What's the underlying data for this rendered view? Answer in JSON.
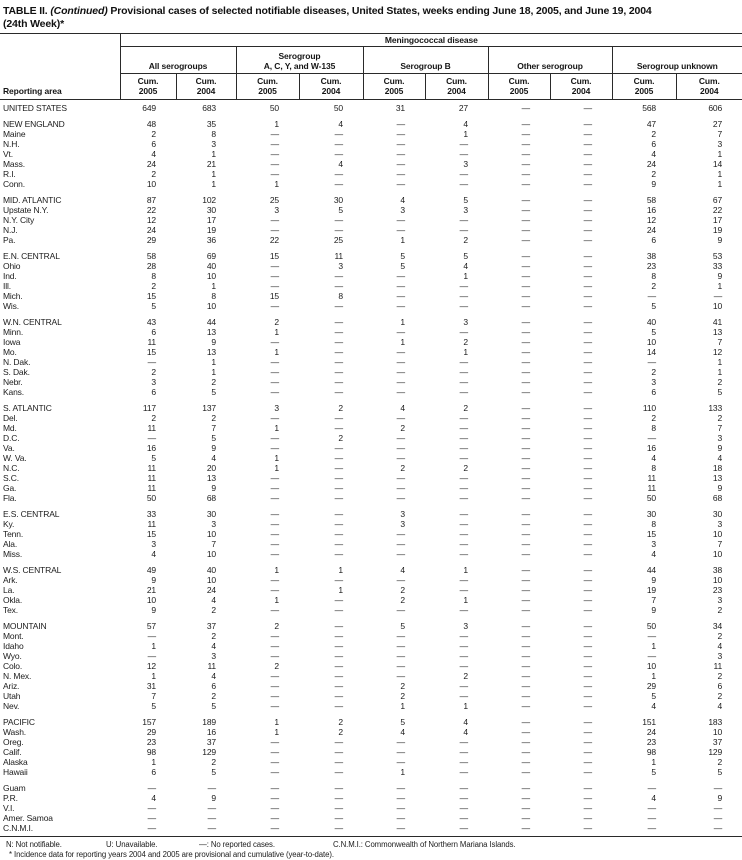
{
  "title": {
    "part1": "TABLE II.",
    "part2": "(Continued)",
    "part3": "Provisional cases of selected notifiable diseases, United States, weeks ending June 18, 2005, and June 19, 2004",
    "line2": "(24th Week)*"
  },
  "header": {
    "reporting_area": "Reporting area",
    "disease": "Meningococcal disease",
    "groups": [
      {
        "lines": [
          "All serogroups"
        ]
      },
      {
        "lines": [
          "Serogroup",
          "A, C, Y, and W-135"
        ]
      },
      {
        "lines": [
          "Serogroup B"
        ]
      },
      {
        "lines": [
          "Other serogroup"
        ]
      },
      {
        "lines": [
          "Serogroup unknown"
        ]
      }
    ],
    "cum_label": "Cum.",
    "years": [
      "2005",
      "2004"
    ]
  },
  "rows": [
    {
      "label": "UNITED STATES",
      "gap": false,
      "values": [
        "649",
        "683",
        "50",
        "50",
        "31",
        "27",
        "—",
        "—",
        "568",
        "606"
      ]
    },
    {
      "label": "NEW ENGLAND",
      "gap": true,
      "values": [
        "48",
        "35",
        "1",
        "4",
        "—",
        "4",
        "—",
        "—",
        "47",
        "27"
      ]
    },
    {
      "label": "Maine",
      "gap": false,
      "values": [
        "2",
        "8",
        "—",
        "—",
        "—",
        "1",
        "—",
        "—",
        "2",
        "7"
      ]
    },
    {
      "label": "N.H.",
      "gap": false,
      "values": [
        "6",
        "3",
        "—",
        "—",
        "—",
        "—",
        "—",
        "—",
        "6",
        "3"
      ]
    },
    {
      "label": "Vt.",
      "gap": false,
      "values": [
        "4",
        "1",
        "—",
        "—",
        "—",
        "—",
        "—",
        "—",
        "4",
        "1"
      ]
    },
    {
      "label": "Mass.",
      "gap": false,
      "values": [
        "24",
        "21",
        "—",
        "4",
        "—",
        "3",
        "—",
        "—",
        "24",
        "14"
      ]
    },
    {
      "label": "R.I.",
      "gap": false,
      "values": [
        "2",
        "1",
        "—",
        "—",
        "—",
        "—",
        "—",
        "—",
        "2",
        "1"
      ]
    },
    {
      "label": "Conn.",
      "gap": false,
      "values": [
        "10",
        "1",
        "1",
        "—",
        "—",
        "—",
        "—",
        "—",
        "9",
        "1"
      ]
    },
    {
      "label": "MID. ATLANTIC",
      "gap": true,
      "values": [
        "87",
        "102",
        "25",
        "30",
        "4",
        "5",
        "—",
        "—",
        "58",
        "67"
      ]
    },
    {
      "label": "Upstate N.Y.",
      "gap": false,
      "values": [
        "22",
        "30",
        "3",
        "5",
        "3",
        "3",
        "—",
        "—",
        "16",
        "22"
      ]
    },
    {
      "label": "N.Y. City",
      "gap": false,
      "values": [
        "12",
        "17",
        "—",
        "—",
        "—",
        "—",
        "—",
        "—",
        "12",
        "17"
      ]
    },
    {
      "label": "N.J.",
      "gap": false,
      "values": [
        "24",
        "19",
        "—",
        "—",
        "—",
        "—",
        "—",
        "—",
        "24",
        "19"
      ]
    },
    {
      "label": "Pa.",
      "gap": false,
      "values": [
        "29",
        "36",
        "22",
        "25",
        "1",
        "2",
        "—",
        "—",
        "6",
        "9"
      ]
    },
    {
      "label": "E.N. CENTRAL",
      "gap": true,
      "values": [
        "58",
        "69",
        "15",
        "11",
        "5",
        "5",
        "—",
        "—",
        "38",
        "53"
      ]
    },
    {
      "label": "Ohio",
      "gap": false,
      "values": [
        "28",
        "40",
        "—",
        "3",
        "5",
        "4",
        "—",
        "—",
        "23",
        "33"
      ]
    },
    {
      "label": "Ind.",
      "gap": false,
      "values": [
        "8",
        "10",
        "—",
        "—",
        "—",
        "1",
        "—",
        "—",
        "8",
        "9"
      ]
    },
    {
      "label": "Ill.",
      "gap": false,
      "values": [
        "2",
        "1",
        "—",
        "—",
        "—",
        "—",
        "—",
        "—",
        "2",
        "1"
      ]
    },
    {
      "label": "Mich.",
      "gap": false,
      "values": [
        "15",
        "8",
        "15",
        "8",
        "—",
        "—",
        "—",
        "—",
        "—",
        "—"
      ]
    },
    {
      "label": "Wis.",
      "gap": false,
      "values": [
        "5",
        "10",
        "—",
        "—",
        "—",
        "—",
        "—",
        "—",
        "5",
        "10"
      ]
    },
    {
      "label": "W.N. CENTRAL",
      "gap": true,
      "values": [
        "43",
        "44",
        "2",
        "—",
        "1",
        "3",
        "—",
        "—",
        "40",
        "41"
      ]
    },
    {
      "label": "Minn.",
      "gap": false,
      "values": [
        "6",
        "13",
        "1",
        "—",
        "—",
        "—",
        "—",
        "—",
        "5",
        "13"
      ]
    },
    {
      "label": "Iowa",
      "gap": false,
      "values": [
        "11",
        "9",
        "—",
        "—",
        "1",
        "2",
        "—",
        "—",
        "10",
        "7"
      ]
    },
    {
      "label": "Mo.",
      "gap": false,
      "values": [
        "15",
        "13",
        "1",
        "—",
        "—",
        "1",
        "—",
        "—",
        "14",
        "12"
      ]
    },
    {
      "label": "N. Dak.",
      "gap": false,
      "values": [
        "—",
        "1",
        "—",
        "—",
        "—",
        "—",
        "—",
        "—",
        "—",
        "1"
      ]
    },
    {
      "label": "S. Dak.",
      "gap": false,
      "values": [
        "2",
        "1",
        "—",
        "—",
        "—",
        "—",
        "—",
        "—",
        "2",
        "1"
      ]
    },
    {
      "label": "Nebr.",
      "gap": false,
      "values": [
        "3",
        "2",
        "—",
        "—",
        "—",
        "—",
        "—",
        "—",
        "3",
        "2"
      ]
    },
    {
      "label": "Kans.",
      "gap": false,
      "values": [
        "6",
        "5",
        "—",
        "—",
        "—",
        "—",
        "—",
        "—",
        "6",
        "5"
      ]
    },
    {
      "label": "S. ATLANTIC",
      "gap": true,
      "values": [
        "117",
        "137",
        "3",
        "2",
        "4",
        "2",
        "—",
        "—",
        "110",
        "133"
      ]
    },
    {
      "label": "Del.",
      "gap": false,
      "values": [
        "2",
        "2",
        "—",
        "—",
        "—",
        "—",
        "—",
        "—",
        "2",
        "2"
      ]
    },
    {
      "label": "Md.",
      "gap": false,
      "values": [
        "11",
        "7",
        "1",
        "—",
        "2",
        "—",
        "—",
        "—",
        "8",
        "7"
      ]
    },
    {
      "label": "D.C.",
      "gap": false,
      "values": [
        "—",
        "5",
        "—",
        "2",
        "—",
        "—",
        "—",
        "—",
        "—",
        "3"
      ]
    },
    {
      "label": "Va.",
      "gap": false,
      "values": [
        "16",
        "9",
        "—",
        "—",
        "—",
        "—",
        "—",
        "—",
        "16",
        "9"
      ]
    },
    {
      "label": "W. Va.",
      "gap": false,
      "values": [
        "5",
        "4",
        "1",
        "—",
        "—",
        "—",
        "—",
        "—",
        "4",
        "4"
      ]
    },
    {
      "label": "N.C.",
      "gap": false,
      "values": [
        "11",
        "20",
        "1",
        "—",
        "2",
        "2",
        "—",
        "—",
        "8",
        "18"
      ]
    },
    {
      "label": "S.C.",
      "gap": false,
      "values": [
        "11",
        "13",
        "—",
        "—",
        "—",
        "—",
        "—",
        "—",
        "11",
        "13"
      ]
    },
    {
      "label": "Ga.",
      "gap": false,
      "values": [
        "11",
        "9",
        "—",
        "—",
        "—",
        "—",
        "—",
        "—",
        "11",
        "9"
      ]
    },
    {
      "label": "Fla.",
      "gap": false,
      "values": [
        "50",
        "68",
        "—",
        "—",
        "—",
        "—",
        "—",
        "—",
        "50",
        "68"
      ]
    },
    {
      "label": "E.S. CENTRAL",
      "gap": true,
      "values": [
        "33",
        "30",
        "—",
        "—",
        "3",
        "—",
        "—",
        "—",
        "30",
        "30"
      ]
    },
    {
      "label": "Ky.",
      "gap": false,
      "values": [
        "11",
        "3",
        "—",
        "—",
        "3",
        "—",
        "—",
        "—",
        "8",
        "3"
      ]
    },
    {
      "label": "Tenn.",
      "gap": false,
      "values": [
        "15",
        "10",
        "—",
        "—",
        "—",
        "—",
        "—",
        "—",
        "15",
        "10"
      ]
    },
    {
      "label": "Ala.",
      "gap": false,
      "values": [
        "3",
        "7",
        "—",
        "—",
        "—",
        "—",
        "—",
        "—",
        "3",
        "7"
      ]
    },
    {
      "label": "Miss.",
      "gap": false,
      "values": [
        "4",
        "10",
        "—",
        "—",
        "—",
        "—",
        "—",
        "—",
        "4",
        "10"
      ]
    },
    {
      "label": "W.S. CENTRAL",
      "gap": true,
      "values": [
        "49",
        "40",
        "1",
        "1",
        "4",
        "1",
        "—",
        "—",
        "44",
        "38"
      ]
    },
    {
      "label": "Ark.",
      "gap": false,
      "values": [
        "9",
        "10",
        "—",
        "—",
        "—",
        "—",
        "—",
        "—",
        "9",
        "10"
      ]
    },
    {
      "label": "La.",
      "gap": false,
      "values": [
        "21",
        "24",
        "—",
        "1",
        "2",
        "—",
        "—",
        "—",
        "19",
        "23"
      ]
    },
    {
      "label": "Okla.",
      "gap": false,
      "values": [
        "10",
        "4",
        "1",
        "—",
        "2",
        "1",
        "—",
        "—",
        "7",
        "3"
      ]
    },
    {
      "label": "Tex.",
      "gap": false,
      "values": [
        "9",
        "2",
        "—",
        "—",
        "—",
        "—",
        "—",
        "—",
        "9",
        "2"
      ]
    },
    {
      "label": "MOUNTAIN",
      "gap": true,
      "values": [
        "57",
        "37",
        "2",
        "—",
        "5",
        "3",
        "—",
        "—",
        "50",
        "34"
      ]
    },
    {
      "label": "Mont.",
      "gap": false,
      "values": [
        "—",
        "2",
        "—",
        "—",
        "—",
        "—",
        "—",
        "—",
        "—",
        "2"
      ]
    },
    {
      "label": "Idaho",
      "gap": false,
      "values": [
        "1",
        "4",
        "—",
        "—",
        "—",
        "—",
        "—",
        "—",
        "1",
        "4"
      ]
    },
    {
      "label": "Wyo.",
      "gap": false,
      "values": [
        "—",
        "3",
        "—",
        "—",
        "—",
        "—",
        "—",
        "—",
        "—",
        "3"
      ]
    },
    {
      "label": "Colo.",
      "gap": false,
      "values": [
        "12",
        "11",
        "2",
        "—",
        "—",
        "—",
        "—",
        "—",
        "10",
        "11"
      ]
    },
    {
      "label": "N. Mex.",
      "gap": false,
      "values": [
        "1",
        "4",
        "—",
        "—",
        "—",
        "2",
        "—",
        "—",
        "1",
        "2"
      ]
    },
    {
      "label": "Ariz.",
      "gap": false,
      "values": [
        "31",
        "6",
        "—",
        "—",
        "2",
        "—",
        "—",
        "—",
        "29",
        "6"
      ]
    },
    {
      "label": "Utah",
      "gap": false,
      "values": [
        "7",
        "2",
        "—",
        "—",
        "2",
        "—",
        "—",
        "—",
        "5",
        "2"
      ]
    },
    {
      "label": "Nev.",
      "gap": false,
      "values": [
        "5",
        "5",
        "—",
        "—",
        "1",
        "1",
        "—",
        "—",
        "4",
        "4"
      ]
    },
    {
      "label": "PACIFIC",
      "gap": true,
      "values": [
        "157",
        "189",
        "1",
        "2",
        "5",
        "4",
        "—",
        "—",
        "151",
        "183"
      ]
    },
    {
      "label": "Wash.",
      "gap": false,
      "values": [
        "29",
        "16",
        "1",
        "2",
        "4",
        "4",
        "—",
        "—",
        "24",
        "10"
      ]
    },
    {
      "label": "Oreg.",
      "gap": false,
      "values": [
        "23",
        "37",
        "—",
        "—",
        "—",
        "—",
        "—",
        "—",
        "23",
        "37"
      ]
    },
    {
      "label": "Calif.",
      "gap": false,
      "values": [
        "98",
        "129",
        "—",
        "—",
        "—",
        "—",
        "—",
        "—",
        "98",
        "129"
      ]
    },
    {
      "label": "Alaska",
      "gap": false,
      "values": [
        "1",
        "2",
        "—",
        "—",
        "—",
        "—",
        "—",
        "—",
        "1",
        "2"
      ]
    },
    {
      "label": "Hawaii",
      "gap": false,
      "values": [
        "6",
        "5",
        "—",
        "—",
        "1",
        "—",
        "—",
        "—",
        "5",
        "5"
      ]
    },
    {
      "label": "Guam",
      "gap": true,
      "values": [
        "—",
        "—",
        "—",
        "—",
        "—",
        "—",
        "—",
        "—",
        "—",
        "—"
      ]
    },
    {
      "label": "P.R.",
      "gap": false,
      "values": [
        "4",
        "9",
        "—",
        "—",
        "—",
        "—",
        "—",
        "—",
        "4",
        "9"
      ]
    },
    {
      "label": "V.I.",
      "gap": false,
      "values": [
        "—",
        "—",
        "—",
        "—",
        "—",
        "—",
        "—",
        "—",
        "—",
        "—"
      ]
    },
    {
      "label": "Amer. Samoa",
      "gap": false,
      "values": [
        "—",
        "—",
        "—",
        "—",
        "—",
        "—",
        "—",
        "—",
        "—",
        "—"
      ]
    },
    {
      "label": "C.N.M.I.",
      "gap": false,
      "values": [
        "—",
        "—",
        "—",
        "—",
        "—",
        "—",
        "—",
        "—",
        "—",
        "—"
      ]
    }
  ],
  "footnotes": {
    "segments": [
      "N: Not notifiable.",
      "U: Unavailable.",
      "—: No reported cases.",
      "C.N.M.I.: Commonwealth of Northern Mariana Islands."
    ],
    "line2": "* Incidence data for reporting years 2004 and 2005 are provisional and cumulative (year-to-date)."
  }
}
